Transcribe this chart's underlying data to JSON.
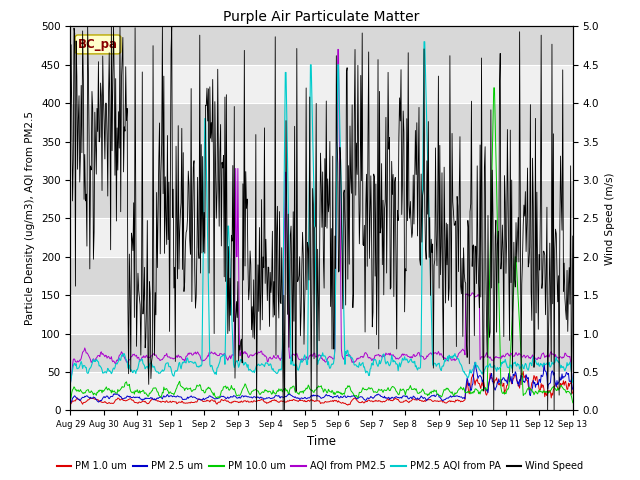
{
  "title": "Purple Air Particulate Matter",
  "xlabel": "Time",
  "ylabel_left": "Particle Density (ug/m3), AQI from PM2.5",
  "ylabel_right": "Wind Speed (m/s)",
  "station_label": "BC_pa",
  "ylim_left": [
    0,
    500
  ],
  "ylim_right": [
    0,
    5.0
  ],
  "yticks_left": [
    0,
    50,
    100,
    150,
    200,
    250,
    300,
    350,
    400,
    450,
    500
  ],
  "yticks_right": [
    0.0,
    0.5,
    1.0,
    1.5,
    2.0,
    2.5,
    3.0,
    3.5,
    4.0,
    4.5,
    5.0
  ],
  "xtick_labels": [
    "Aug 29",
    "Aug 30",
    "Aug 31",
    "Sep 1",
    "Sep 2",
    "Sep 3",
    "Sep 4",
    "Sep 5",
    "Sep 6",
    "Sep 7",
    "Sep 8",
    "Sep 9",
    "Sep 10",
    "Sep 11",
    "Sep 12",
    "Sep 13"
  ],
  "colors": {
    "pm1": "#dd0000",
    "pm25": "#0000cc",
    "pm10": "#00cc00",
    "aqi_pm25": "#aa00cc",
    "pm25_aqi_pa": "#00cccc",
    "wind": "#000000"
  },
  "legend_labels": [
    "PM 1.0 um",
    "PM 2.5 um",
    "PM 10.0 um",
    "AQI from PM2.5",
    "PM2.5 AQI from PA",
    "Wind Speed"
  ],
  "plot_bg_light": "#f0f0f0",
  "plot_bg_dark": "#d8d8d8",
  "fig_bg": "#ffffff",
  "n_points": 700,
  "band_yticks": [
    0,
    50,
    100,
    150,
    200,
    250,
    300,
    350,
    400,
    450,
    500
  ]
}
